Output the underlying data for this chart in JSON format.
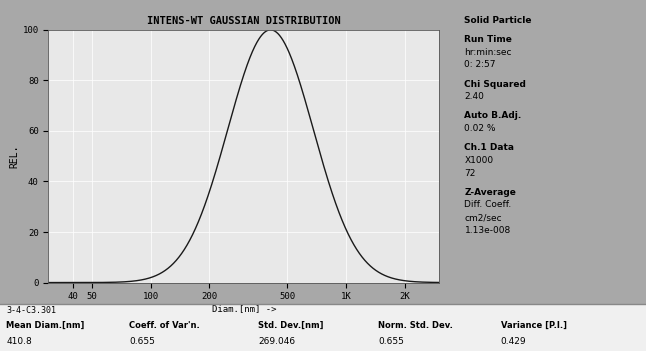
{
  "title": "INTENS-WT GAUSSIAN DISTRIBUTION",
  "ylabel": "REL.",
  "xlabel": "Diam.[nm] ->",
  "mean_nm": 410.8,
  "std_nm": 269.046,
  "ylim": [
    0,
    100
  ],
  "xlog_ticks": [
    40,
    50,
    100,
    200,
    500,
    1000,
    2000
  ],
  "xlog_tick_labels": [
    "40",
    "50",
    "100",
    "200",
    "500",
    "1K",
    "2K"
  ],
  "xmin": 30,
  "xmax": 3000,
  "outer_bg": "#a8a8a8",
  "inner_bg": "#d4d4d4",
  "plot_bg": "#e8e8e8",
  "curve_color": "#1a1a1a",
  "grid_color": "#ffffff",
  "bottom_label": "3-4-C3.301",
  "bottom_stats": [
    [
      "Mean Diam.[nm]",
      "410.8"
    ],
    [
      "Coeff. of Var'n.",
      "0.655"
    ],
    [
      "Std. Dev.[nm]",
      "269.046"
    ],
    [
      "Norm. Std. Dev.",
      "0.655"
    ],
    [
      "Variance [P.I.]",
      "0.429"
    ]
  ],
  "side_panel_text": [
    [
      "Solid Particle",
      true
    ],
    [
      "",
      false
    ],
    [
      "Run Time",
      true
    ],
    [
      "hr:min:sec",
      false
    ],
    [
      "0: 2:57",
      false
    ],
    [
      "",
      false
    ],
    [
      "Chi Squared",
      true
    ],
    [
      "2.40",
      false
    ],
    [
      "",
      false
    ],
    [
      "Auto B.Adj.",
      true
    ],
    [
      "0.02 %",
      false
    ],
    [
      "",
      false
    ],
    [
      "Ch.1 Data",
      true
    ],
    [
      "X1000",
      false
    ],
    [
      "72",
      false
    ],
    [
      "",
      false
    ],
    [
      "Z-Average",
      true
    ],
    [
      "Diff. Coeff.",
      false
    ],
    [
      "cm2/sec",
      false
    ],
    [
      "1.13e-008",
      false
    ]
  ]
}
